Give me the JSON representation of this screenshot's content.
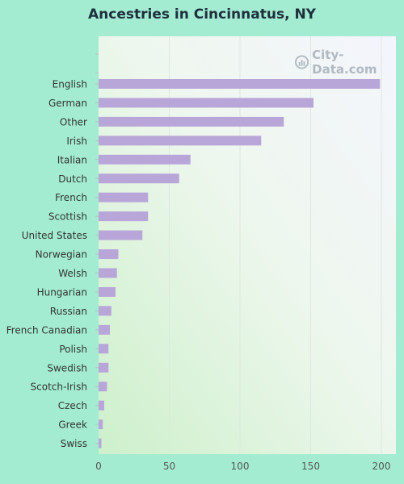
{
  "chart_data": {
    "type": "bar",
    "orientation": "horizontal",
    "title": "Ancestries in Cincinnatus, NY",
    "xlabel": "",
    "ylabel": "",
    "categories": [
      "English",
      "German",
      "Other",
      "Irish",
      "Italian",
      "Dutch",
      "French",
      "Scottish",
      "United States",
      "Norwegian",
      "Welsh",
      "Hungarian",
      "Russian",
      "French Canadian",
      "Polish",
      "Swedish",
      "Scotch-Irish",
      "Czech",
      "Greek",
      "Swiss"
    ],
    "values": [
      199,
      152,
      131,
      115,
      65,
      57,
      35,
      35,
      31,
      14,
      13,
      12,
      9,
      8,
      7,
      7,
      6,
      4,
      3,
      2
    ],
    "xlim": [
      0,
      210
    ],
    "xticks": [
      "0",
      "50",
      "100",
      "150",
      "200"
    ],
    "grid": true,
    "bar_color": "#b9a6d9"
  },
  "watermark": {
    "text": "City-Data.com"
  }
}
